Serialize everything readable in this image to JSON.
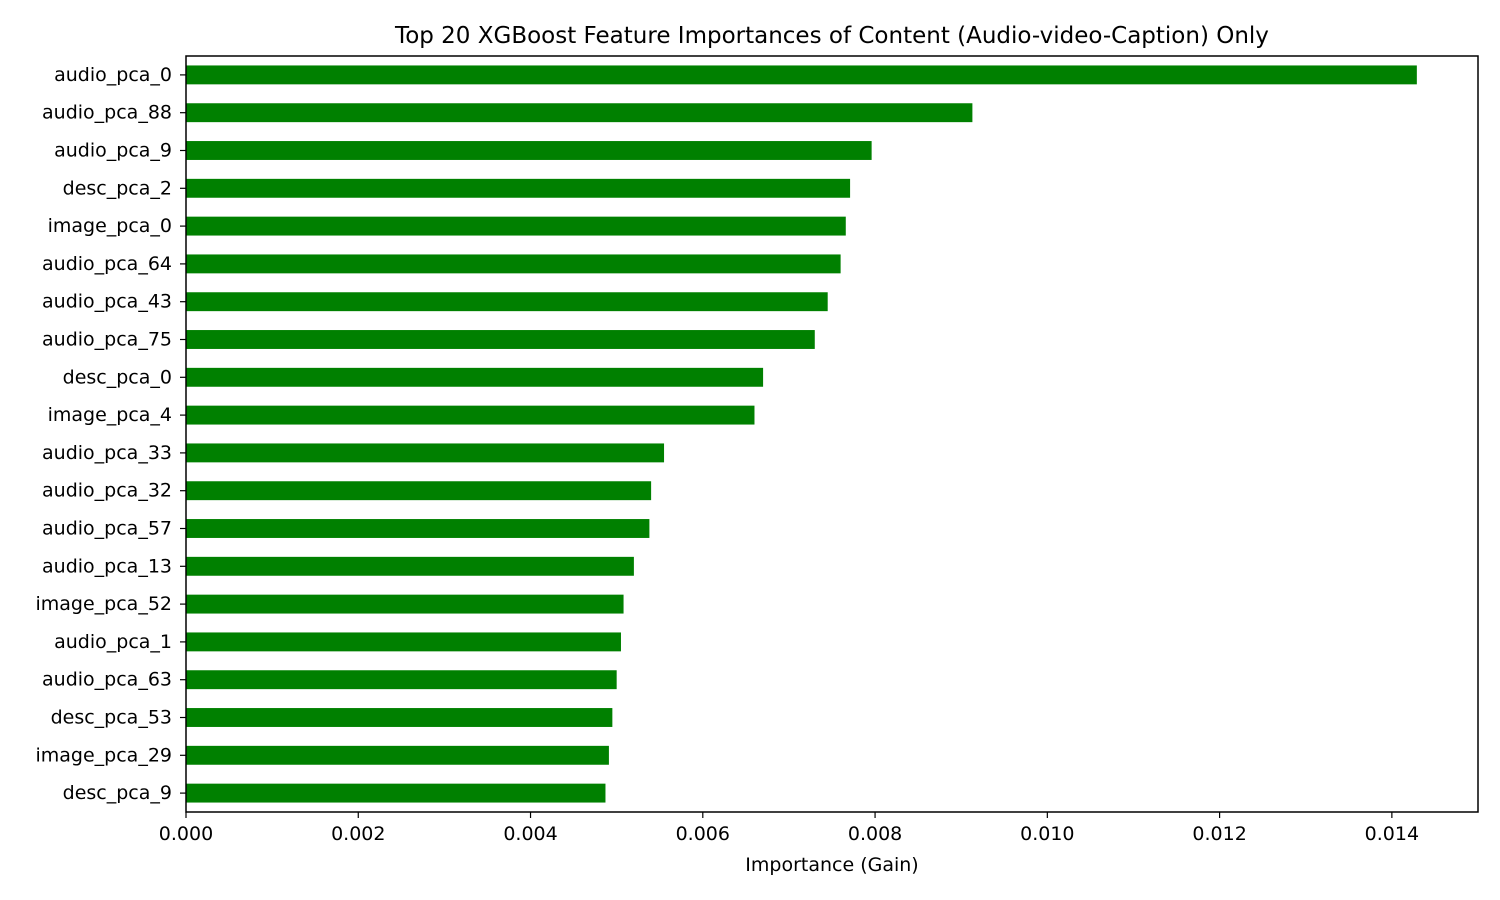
{
  "chart_data": {
    "type": "bar",
    "orientation": "horizontal",
    "title": "Top 20 XGBoost Feature Importances  of Content (Audio-video-Caption) Only",
    "xlabel": "Importance (Gain)",
    "ylabel": "",
    "xlim": [
      0,
      0.015
    ],
    "xticks": [
      "0.000",
      "0.002",
      "0.004",
      "0.006",
      "0.008",
      "0.010",
      "0.012",
      "0.014"
    ],
    "grid": false,
    "legend": "none",
    "bar_color": "#008000",
    "categories": [
      "audio_pca_0",
      "audio_pca_88",
      "audio_pca_9",
      "desc_pca_2",
      "image_pca_0",
      "audio_pca_64",
      "audio_pca_43",
      "audio_pca_75",
      "desc_pca_0",
      "image_pca_4",
      "audio_pca_33",
      "audio_pca_32",
      "audio_pca_57",
      "audio_pca_13",
      "image_pca_52",
      "audio_pca_1",
      "audio_pca_63",
      "desc_pca_53",
      "image_pca_29",
      "desc_pca_9"
    ],
    "values": [
      0.01429,
      0.00913,
      0.00796,
      0.00771,
      0.00766,
      0.0076,
      0.00745,
      0.0073,
      0.0067,
      0.0066,
      0.00555,
      0.0054,
      0.00538,
      0.0052,
      0.00508,
      0.00505,
      0.005,
      0.00495,
      0.00491,
      0.00487
    ]
  }
}
